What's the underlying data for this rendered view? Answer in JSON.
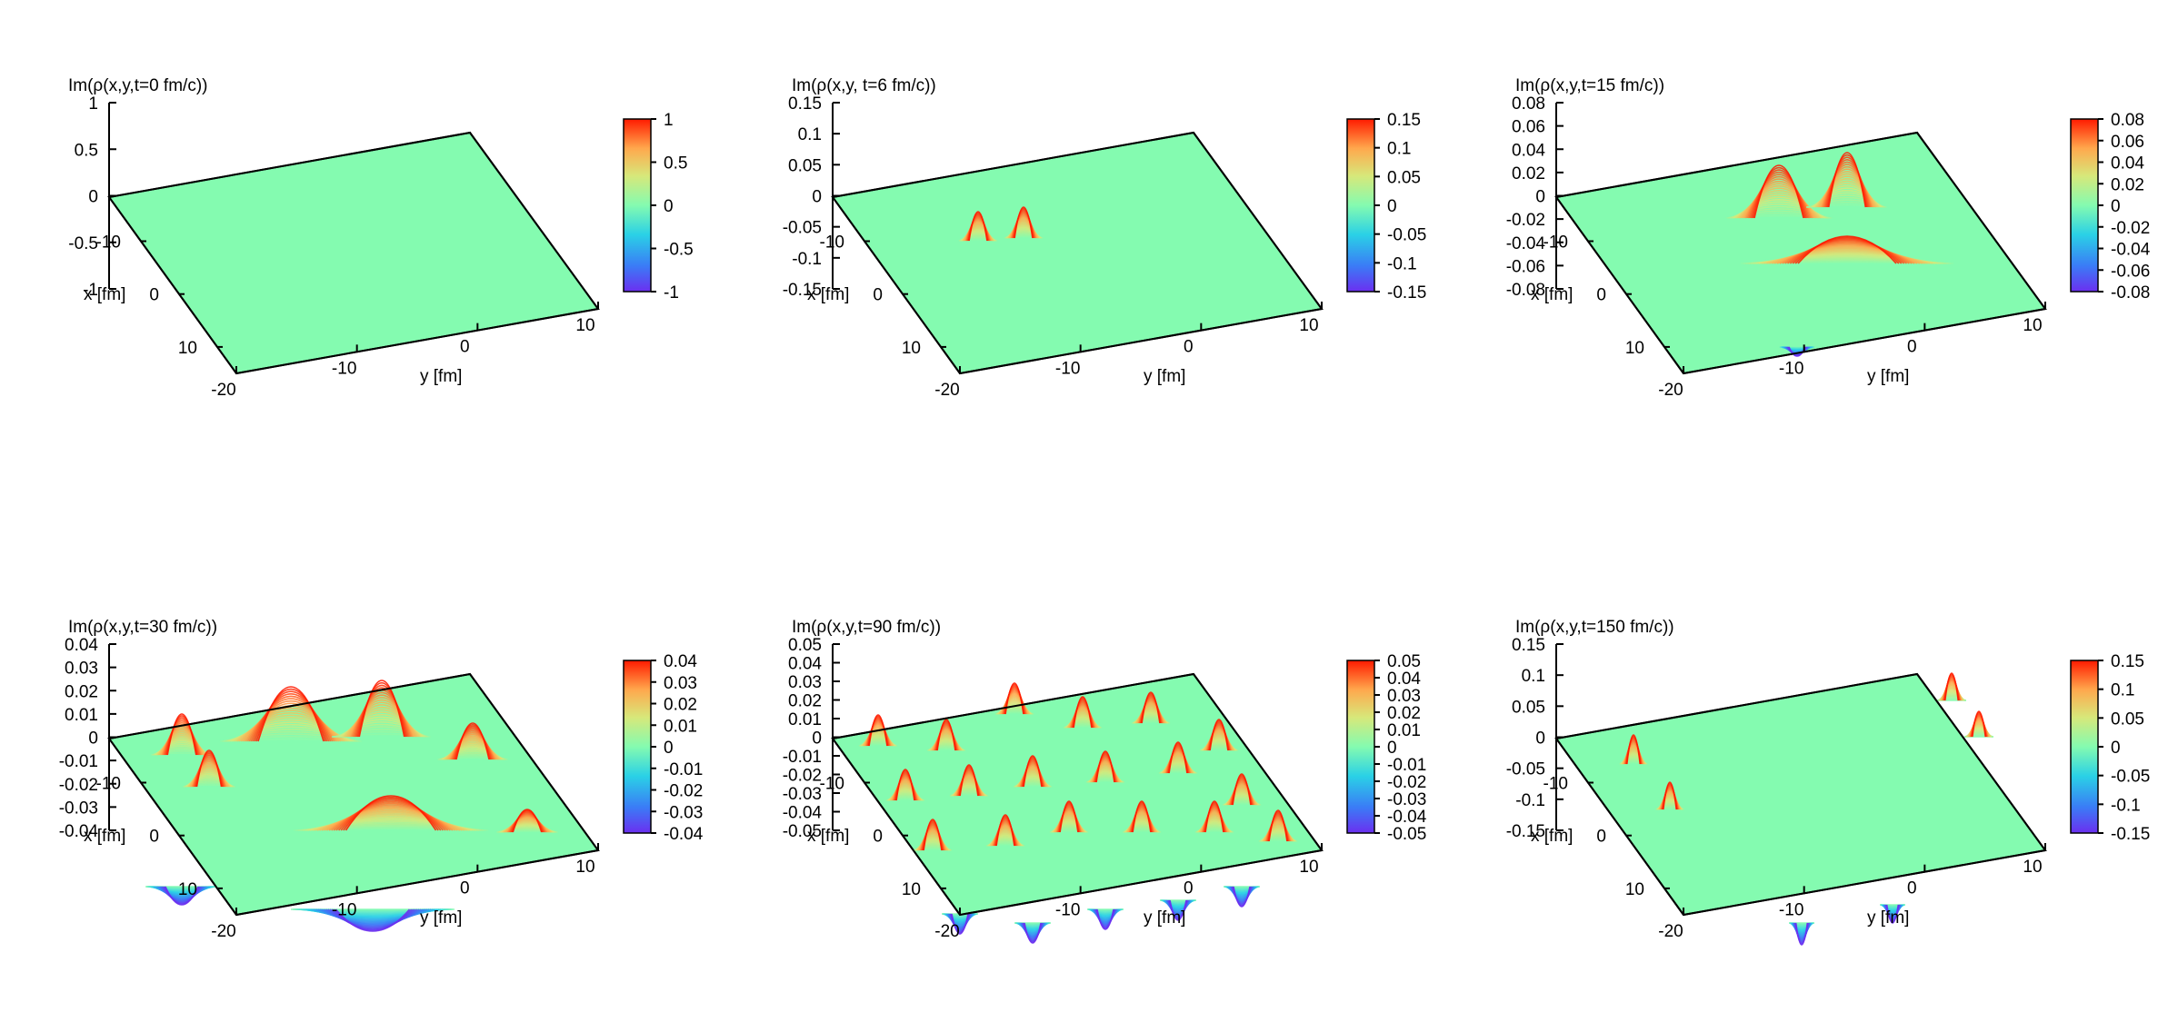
{
  "figure": {
    "panels": [
      {
        "title": "Im(ρ(x,y,t=0 fm/c))",
        "zticks": [
          "1",
          "0.5",
          "0",
          "-0.5",
          "-1"
        ],
        "cbticks": [
          "1",
          "0.5",
          "0",
          "-0.5",
          "-1"
        ],
        "pattern": "flat"
      },
      {
        "title": "Im(ρ(x,y, t=6 fm/c))",
        "zticks": [
          "0.15",
          "0.1",
          "0.05",
          "0",
          "-0.05",
          "-0.1",
          "-0.15"
        ],
        "cbticks": [
          "0.15",
          "0.1",
          "0.05",
          "0",
          "-0.05",
          "-0.1",
          "-0.15"
        ],
        "pattern": "two-peaks"
      },
      {
        "title": "Im(ρ(x,y,t=15 fm/c))",
        "zticks": [
          "0.08",
          "0.06",
          "0.04",
          "0.02",
          "0",
          "-0.02",
          "-0.04",
          "-0.06",
          "-0.08"
        ],
        "cbticks": [
          "0.08",
          "0.06",
          "0.04",
          "0.02",
          "0",
          "-0.02",
          "-0.04",
          "-0.06",
          "-0.08"
        ],
        "pattern": "spreading-waves"
      },
      {
        "title": "Im(ρ(x,y,t=30 fm/c))",
        "zticks": [
          "0.04",
          "0.03",
          "0.02",
          "0.01",
          "0",
          "-0.01",
          "-0.02",
          "-0.03",
          "-0.04"
        ],
        "cbticks": [
          "0.04",
          "0.03",
          "0.02",
          "0.01",
          "0",
          "-0.01",
          "-0.02",
          "-0.03",
          "-0.04"
        ],
        "pattern": "large-oscillations"
      },
      {
        "title": "Im(ρ(x,y,t=90 fm/c))",
        "zticks": [
          "0.05",
          "0.04",
          "0.03",
          "0.02",
          "0.01",
          "0",
          "-0.01",
          "-0.02",
          "-0.03",
          "-0.04",
          "-0.05"
        ],
        "cbticks": [
          "0.05",
          "0.04",
          "0.03",
          "0.02",
          "0.01",
          "0",
          "-0.01",
          "-0.02",
          "-0.03",
          "-0.04",
          "-0.05"
        ],
        "pattern": "many-peaks"
      },
      {
        "title": "Im(ρ(x,y,t=150 fm/c))",
        "zticks": [
          "0.15",
          "0.1",
          "0.05",
          "0",
          "-0.05",
          "-0.1",
          "-0.15"
        ],
        "cbticks": [
          "0.15",
          "0.1",
          "0.05",
          "0",
          "-0.05",
          "-0.1",
          "-0.15"
        ],
        "pattern": "edge-peaks"
      }
    ],
    "xaxis": {
      "label": "x [fm]",
      "ticks": [
        "-10",
        "0",
        "10"
      ]
    },
    "yaxis": {
      "label": "y [fm]",
      "ticks": [
        "-20",
        "-10",
        "0",
        "10"
      ]
    }
  },
  "chart_data": [
    {
      "type": "surface",
      "title": "Im(ρ(x,y,t=0 fm/c))",
      "xlabel": "x [fm]",
      "ylabel": "y [fm]",
      "zlim": [
        -1,
        1
      ],
      "colorbar_range": [
        -1,
        1
      ],
      "colormap": "rainbow",
      "grid": false
    },
    {
      "type": "surface",
      "title": "Im(ρ(x,y, t=6 fm/c))",
      "xlabel": "x [fm]",
      "ylabel": "y [fm]",
      "zlim": [
        -0.15,
        0.15
      ],
      "colorbar_range": [
        -0.15,
        0.15
      ],
      "colormap": "rainbow",
      "grid": false
    },
    {
      "type": "surface",
      "title": "Im(ρ(x,y,t=15 fm/c))",
      "xlabel": "x [fm]",
      "ylabel": "y [fm]",
      "zlim": [
        -0.08,
        0.08
      ],
      "colorbar_range": [
        -0.08,
        0.08
      ],
      "colormap": "rainbow",
      "grid": false
    },
    {
      "type": "surface",
      "title": "Im(ρ(x,y,t=30 fm/c))",
      "xlabel": "x [fm]",
      "ylabel": "y [fm]",
      "zlim": [
        -0.04,
        0.04
      ],
      "colorbar_range": [
        -0.04,
        0.04
      ],
      "colormap": "rainbow",
      "grid": false
    },
    {
      "type": "surface",
      "title": "Im(ρ(x,y,t=90 fm/c))",
      "xlabel": "x [fm]",
      "ylabel": "y [fm]",
      "zlim": [
        -0.05,
        0.05
      ],
      "colorbar_range": [
        -0.05,
        0.05
      ],
      "colormap": "rainbow",
      "grid": false
    },
    {
      "type": "surface",
      "title": "Im(ρ(x,y,t=150 fm/c))",
      "xlabel": "x [fm]",
      "ylabel": "y [fm]",
      "zlim": [
        -0.15,
        0.15
      ],
      "colorbar_range": [
        -0.15,
        0.15
      ],
      "colormap": "rainbow",
      "grid": false
    }
  ]
}
